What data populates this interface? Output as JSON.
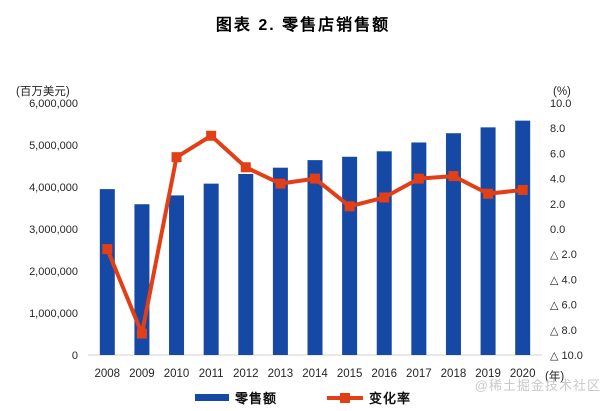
{
  "title": "图表 2. 零售店销售额",
  "colors": {
    "bar": "#1549A5",
    "line": "#E23F17",
    "axis_line": "#d9d9d9",
    "text": "#262626",
    "watermark": "#c9c9c9"
  },
  "left_axis": {
    "unit": "(百万美元)",
    "tick_labels": [
      "6,000,000",
      "5,000,000",
      "4,000,000",
      "3,000,000",
      "2,000,000",
      "1,000,000",
      "0"
    ]
  },
  "right_axis": {
    "unit": "(%)",
    "tick_labels": [
      "10.0",
      "8.0",
      "6.0",
      "4.0",
      "2.0",
      "0.0",
      "△ 2.0",
      "△ 4.0",
      "△ 6.0",
      "△ 8.0",
      "△ 10.0"
    ]
  },
  "x_axis": {
    "unit": "(年)"
  },
  "legend": {
    "bar_label": "零售额",
    "line_label": "变化率"
  },
  "watermark": "@稀土掘金技术社区",
  "chart_data": {
    "type": "bar+line",
    "title": "图表 2. 零售店销售额",
    "categories": [
      "2008",
      "2009",
      "2010",
      "2011",
      "2012",
      "2013",
      "2014",
      "2015",
      "2016",
      "2017",
      "2018",
      "2019",
      "2020"
    ],
    "series": [
      {
        "name": "零售额",
        "type": "bar",
        "axis": "left",
        "unit": "百万美元",
        "values": [
          3950000,
          3590000,
          3800000,
          4080000,
          4310000,
          4460000,
          4640000,
          4720000,
          4850000,
          5060000,
          5280000,
          5420000,
          5580000
        ]
      },
      {
        "name": "变化率",
        "type": "line",
        "axis": "right",
        "unit": "%",
        "values": [
          -1.6,
          -8.3,
          5.7,
          7.4,
          4.9,
          3.6,
          4.0,
          1.8,
          2.5,
          4.0,
          4.2,
          2.8,
          3.1
        ]
      }
    ],
    "left_ylim": [
      0,
      6000000
    ],
    "left_step": 1000000,
    "right_ylim": [
      -10,
      10
    ],
    "right_step": 2,
    "grid": false,
    "legend_position": "bottom",
    "negative_notation": "△"
  }
}
